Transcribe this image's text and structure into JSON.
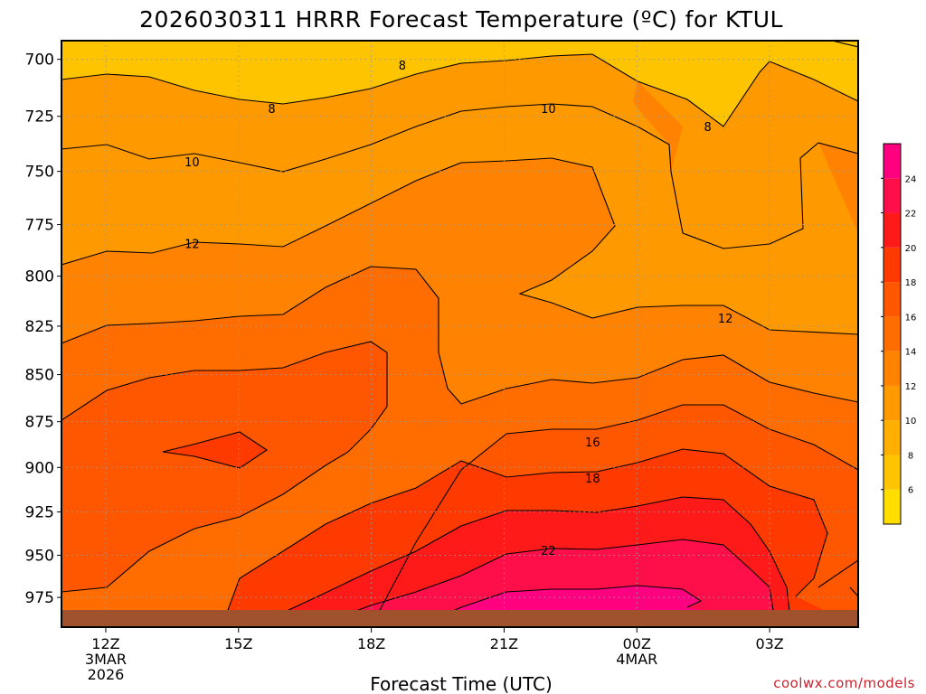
{
  "title": "2026030311 HRRR Forecast Temperature (ºC) for KTUL",
  "credit": "coolwx.com/models",
  "colors": {
    "ground": "#a0522d",
    "contour_line": "#000000",
    "grid": "#9a9a9a",
    "credit_text": "#d01f2a"
  },
  "chart_data": {
    "type": "heatmap",
    "subtype": "filled contour time-height cross section",
    "title": "2026030311 HRRR Forecast Temperature (ºC) for KTUL",
    "xlabel": "Forecast Time (UTC)",
    "ylabel": "",
    "x_axis": {
      "unit": "hours since 2026-03-03 12Z (approximate, for plotting)",
      "range": [
        -1,
        17
      ],
      "ticks": [
        {
          "value": 0,
          "lines": [
            "12Z",
            "3MAR",
            "2026"
          ]
        },
        {
          "value": 3,
          "lines": [
            "15Z"
          ]
        },
        {
          "value": 6,
          "lines": [
            "18Z"
          ]
        },
        {
          "value": 9,
          "lines": [
            "21Z"
          ]
        },
        {
          "value": 12,
          "lines": [
            "00Z",
            "4MAR"
          ]
        },
        {
          "value": 15,
          "lines": [
            "03Z"
          ]
        }
      ]
    },
    "y_axis": {
      "unit": "hPa",
      "scale": "log-pressure (inverted)",
      "range": [
        692,
        993
      ],
      "ticks": [
        700,
        725,
        750,
        775,
        800,
        825,
        850,
        875,
        900,
        925,
        950,
        975
      ]
    },
    "grid": true,
    "grid_style": "dotted",
    "colorbar": {
      "position": "right",
      "levels": [
        4,
        6,
        8,
        10,
        12,
        14,
        16,
        18,
        20,
        22,
        24,
        26
      ],
      "tick_labels": [
        "6",
        "8",
        "10",
        "12",
        "14",
        "16",
        "18",
        "20",
        "22",
        "24"
      ],
      "colors": [
        "#ffde00",
        "#ffc400",
        "#ffaf00",
        "#ff9900",
        "#ff8300",
        "#ff6d00",
        "#ff5600",
        "#ff3a00",
        "#ff1a1a",
        "#ff0f4a",
        "#ff0080"
      ]
    },
    "contour_labels": [
      {
        "value": "8",
        "t": 6.7,
        "p": 702.5
      },
      {
        "value": "8",
        "t": 3.75,
        "p": 721.5
      },
      {
        "value": "8",
        "t": 13.6,
        "p": 729.5
      },
      {
        "value": "10",
        "t": 10.0,
        "p": 721.5
      },
      {
        "value": "10",
        "t": 1.95,
        "p": 745.5
      },
      {
        "value": "12",
        "t": 1.95,
        "p": 784.0
      },
      {
        "value": "12",
        "t": 14.0,
        "p": 821.0
      },
      {
        "value": "16",
        "t": 11.0,
        "p": 886.0
      },
      {
        "value": "18",
        "t": 11.0,
        "p": 906.0
      },
      {
        "value": "22",
        "t": 10.0,
        "p": 947.0
      }
    ]
  }
}
